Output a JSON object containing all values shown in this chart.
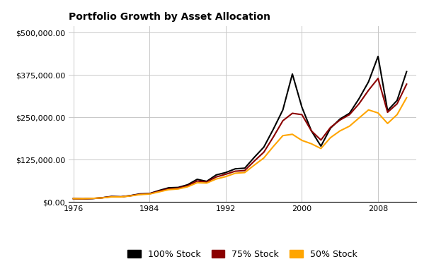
{
  "title": "Portfolio Growth by Asset Allocation",
  "years": [
    1976,
    1977,
    1978,
    1979,
    1980,
    1981,
    1982,
    1983,
    1984,
    1985,
    1986,
    1987,
    1988,
    1989,
    1990,
    1991,
    1992,
    1993,
    1994,
    1995,
    1996,
    1997,
    1998,
    1999,
    2000,
    2001,
    2002,
    2003,
    2004,
    2005,
    2006,
    2007,
    2008,
    2009,
    2010,
    2011
  ],
  "stock100": [
    10000,
    9200,
    10200,
    12500,
    16500,
    15500,
    19000,
    24000,
    25000,
    34000,
    42000,
    43000,
    51000,
    67000,
    61000,
    80000,
    87000,
    98000,
    100000,
    132000,
    162000,
    215000,
    272000,
    378000,
    280000,
    210000,
    165000,
    218000,
    245000,
    262000,
    305000,
    355000,
    430000,
    270000,
    300000,
    385000
  ],
  "stock75": [
    10000,
    9600,
    10500,
    12400,
    15800,
    15300,
    18500,
    23000,
    24500,
    32000,
    39000,
    41000,
    48000,
    62000,
    59000,
    74000,
    82000,
    91000,
    93000,
    121000,
    147000,
    192000,
    240000,
    262000,
    258000,
    210000,
    183000,
    220000,
    242000,
    258000,
    290000,
    330000,
    365000,
    265000,
    290000,
    348000
  ],
  "stock50": [
    10000,
    9800,
    10700,
    12200,
    15000,
    14900,
    18000,
    22000,
    23500,
    30000,
    36500,
    38500,
    45000,
    57000,
    56000,
    68000,
    75000,
    85000,
    87000,
    109000,
    130000,
    164000,
    196000,
    200000,
    182000,
    172000,
    158000,
    190000,
    210000,
    224000,
    248000,
    272000,
    263000,
    232000,
    258000,
    308000
  ],
  "line_colors": [
    "#000000",
    "#8B0000",
    "#FFA500"
  ],
  "legend_labels": [
    "100% Stock",
    "75% Stock",
    "50% Stock"
  ],
  "legend_colors": [
    "#000000",
    "#8B0000",
    "#FFA500"
  ],
  "yticks": [
    0,
    125000,
    250000,
    375000,
    500000
  ],
  "ytick_labels": [
    "$0.00",
    "$125,000.00",
    "$250,000.00",
    "$375,000.00",
    "$500,000.00"
  ],
  "xticks": [
    1976,
    1984,
    1992,
    2000,
    2008
  ],
  "xlim": [
    1975.5,
    2012
  ],
  "ylim": [
    0,
    520000
  ],
  "background_color": "#ffffff",
  "grid_color": "#c8c8c8",
  "line_width": 1.5,
  "title_fontsize": 10,
  "tick_fontsize": 8
}
